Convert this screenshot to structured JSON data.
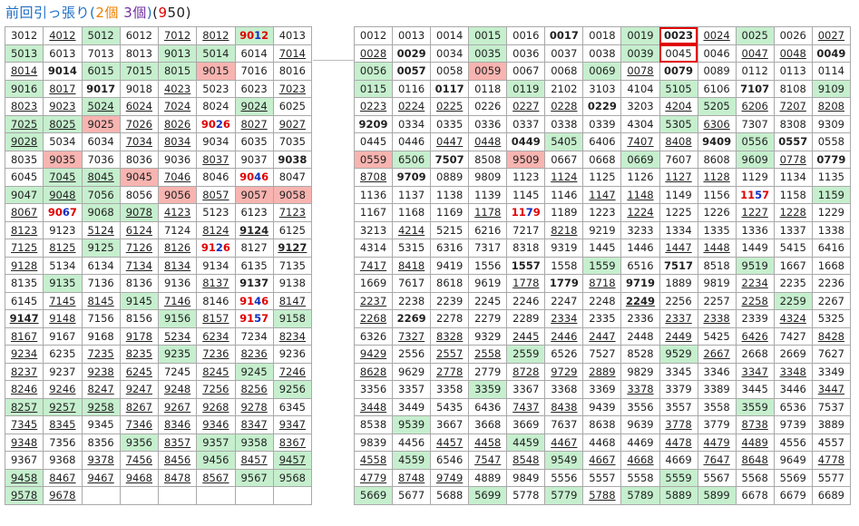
{
  "title": {
    "name": "前回引っ張り",
    "open_paren": "(",
    "count_a": "2個",
    "count_b": "3個",
    "close_paren": ")",
    "number_open": "(",
    "number_digit_1": "9",
    "number_rest": "50",
    "number_close": ")"
  },
  "colors": {
    "green": "#c6efce",
    "pink": "#f8b4b0",
    "red": "#e00000",
    "blue": "#1030c0",
    "title_blue": "#1f6fc5",
    "title_orange": "#f08000",
    "title_purple": "#7030a0"
  },
  "left_table": [
    [
      "3012",
      "4012u",
      "5012g",
      "6012",
      "7012u",
      "8012u",
      "9012g#",
      "4013"
    ],
    [
      "5013g",
      "6013",
      "7013",
      "8013",
      "9013g",
      "5014g",
      "6014",
      "7014u"
    ],
    [
      "8014u",
      "9014*",
      "6015g",
      "7015g",
      "8015g",
      "9015p",
      "7016",
      "8016"
    ],
    [
      "9016g",
      "8017u",
      "9017*",
      "9018",
      "4023u",
      "5023",
      "6023",
      "7023u"
    ],
    [
      "8023u",
      "9023u",
      "5024gu",
      "6024u",
      "7024u",
      "8024",
      "9024gu",
      "6025"
    ],
    [
      "7025gu",
      "8025gu",
      "9025p",
      "7026u",
      "8026u",
      "9026#",
      "8027u",
      "9027u"
    ],
    [
      "9028gu",
      "5034",
      "6034",
      "7034u",
      "8034u",
      "9034",
      "6035",
      "7035"
    ],
    [
      "8035",
      "9035p",
      "7036",
      "8036",
      "9036",
      "8037u",
      "9037",
      "9038*"
    ],
    [
      "6045",
      "7045gu",
      "8045gu",
      "9045p",
      "7046u",
      "8046",
      "9046#",
      "8047"
    ],
    [
      "9047g",
      "9048gu",
      "7056g",
      "8056",
      "9056p",
      "8057u",
      "9057p",
      "9058p"
    ],
    [
      "8067u",
      "9067#",
      "9068g",
      "9078gu",
      "4123u",
      "5123",
      "6123",
      "7123u"
    ],
    [
      "8123u",
      "9123",
      "5124u",
      "6124u",
      "7124",
      "8124u",
      "9124*u",
      "6125"
    ],
    [
      "7125u",
      "8125u",
      "9125g",
      "7126u",
      "8126u",
      "9126#",
      "8127",
      "9127*u"
    ],
    [
      "9128u",
      "5134",
      "6134",
      "7134u",
      "8134u",
      "9134",
      "6135",
      "7135"
    ],
    [
      "8135",
      "9135g",
      "7136",
      "8136",
      "9136",
      "8137u",
      "9137*",
      "9138"
    ],
    [
      "6145",
      "7145u",
      "8145u",
      "9145g",
      "7146u",
      "8146",
      "9146#",
      "8147u"
    ],
    [
      "9147*u",
      "9148u",
      "7156",
      "8156",
      "9156g",
      "8157u",
      "9157#",
      "9158g"
    ],
    [
      "8167u",
      "9167",
      "9168",
      "9178u",
      "5234u",
      "6234u",
      "7234",
      "8234u"
    ],
    [
      "9234u",
      "6235",
      "7235u",
      "8235u",
      "9235g",
      "7236u",
      "8236u",
      "9236"
    ],
    [
      "8237u",
      "9237",
      "9238u",
      "6245u",
      "7245",
      "8245u",
      "9245g",
      "7246u"
    ],
    [
      "8246u",
      "9246u",
      "8247u",
      "9247u",
      "9248u",
      "7256u",
      "8256u",
      "9256g"
    ],
    [
      "8257gu",
      "9257gu",
      "9258gu",
      "8267u",
      "9267u",
      "9268u",
      "9278u",
      "6345"
    ],
    [
      "7345u",
      "8345u",
      "9345",
      "7346u",
      "8346u",
      "9346u",
      "8347u",
      "9347u"
    ],
    [
      "9348u",
      "7356",
      "8356",
      "9356g",
      "8357u",
      "9357g",
      "9358g",
      "8367u"
    ],
    [
      "9367",
      "9368",
      "9378u",
      "7456u",
      "8456u",
      "9456g",
      "8457u",
      "9457gu"
    ],
    [
      "9458gu",
      "8467u",
      "9467u",
      "9468u",
      "8478u",
      "8567u",
      "9567g",
      "9568g"
    ],
    [
      "9578gu",
      "9678u",
      "",
      "",
      "",
      "",
      "",
      ""
    ]
  ],
  "right_table": [
    [
      "0012",
      "0013",
      "0014",
      "0015g",
      "0016",
      "0017*",
      "0018",
      "0019g",
      "0023*x",
      "0024u",
      "0025g",
      "0026",
      "0027u"
    ],
    [
      "0028u",
      "0029*",
      "0034",
      "0035g",
      "0036",
      "0037",
      "0038",
      "0039g",
      "0045x",
      "0046",
      "0047u",
      "0048u",
      "0049*"
    ],
    [
      "0056g",
      "0057*",
      "0058",
      "0059p",
      "0067",
      "0068",
      "0069g",
      "0078u",
      "0079*",
      "0089",
      "0112",
      "0113",
      "0114"
    ],
    [
      "0115g",
      "0116",
      "0117*",
      "0118",
      "0119g",
      "2102",
      "3103",
      "4104",
      "5105g",
      "6106",
      "7107*",
      "8108",
      "9109g"
    ],
    [
      "0223u",
      "0224u",
      "0225u",
      "0226",
      "0227u",
      "0228u",
      "0229*",
      "3203",
      "4204u",
      "5205g",
      "6206u",
      "7207u",
      "8208u"
    ],
    [
      "9209*",
      "0334",
      "0335",
      "0336",
      "0337",
      "0338",
      "0339",
      "4304",
      "5305g",
      "6306u",
      "7307",
      "8308",
      "9309"
    ],
    [
      "0445",
      "0446",
      "0447u",
      "0448u",
      "0449*",
      "5405g",
      "6406",
      "7407u",
      "8408u",
      "9409*",
      "0556g",
      "0557*",
      "0558"
    ],
    [
      "0559p",
      "6506g",
      "7507*",
      "8508",
      "9509p",
      "0667",
      "0668",
      "0669g",
      "7607",
      "8608",
      "9609g",
      "0778u",
      "0779*"
    ],
    [
      "8708u",
      "9709*",
      "0889",
      "9809",
      "1123",
      "1124u",
      "1125",
      "1126",
      "1127u",
      "1128u",
      "1129",
      "1134",
      "1135"
    ],
    [
      "1136",
      "1137",
      "1138",
      "1139",
      "1145",
      "1146",
      "1147u",
      "1148u",
      "1149",
      "1156",
      "1157#",
      "1158",
      "1159g"
    ],
    [
      "1167",
      "1168",
      "1169",
      "1178u",
      "1179#",
      "1189",
      "1223",
      "1224u",
      "1225",
      "1226",
      "1227u",
      "1228u",
      "1229"
    ],
    [
      "3213",
      "4214u",
      "5215",
      "6216",
      "7217",
      "8218u",
      "9219",
      "3233",
      "1334",
      "1335",
      "1336",
      "1337",
      "1338"
    ],
    [
      "4314",
      "5315",
      "6316",
      "7317",
      "8318",
      "9319",
      "1445",
      "1446",
      "1447u",
      "1448u",
      "1449",
      "5415",
      "6416"
    ],
    [
      "7417u",
      "8418u",
      "9419",
      "1556",
      "1557*",
      "1558",
      "1559g",
      "6516",
      "7517*",
      "8518",
      "9519g",
      "1667",
      "1668"
    ],
    [
      "1669",
      "7617",
      "8618",
      "9619",
      "1778u",
      "1779+",
      "8718u",
      "9719*",
      "1889",
      "9819",
      "2234u",
      "2235",
      "2236"
    ],
    [
      "2237u",
      "2238",
      "2239",
      "2245",
      "2246",
      "2247",
      "2248",
      "2249*u",
      "2256",
      "2257",
      "2258u",
      "2259g",
      "2267"
    ],
    [
      "2268u",
      "2269*",
      "2278",
      "2279",
      "2289",
      "2334u",
      "2335",
      "2336",
      "2337u",
      "2338u",
      "2339",
      "4324u",
      "5325"
    ],
    [
      "6326",
      "7327u",
      "8328u",
      "9329",
      "2445u",
      "2446u",
      "2447u",
      "2448",
      "2449u",
      "5425",
      "6426u",
      "7427",
      "8428u"
    ],
    [
      "9429u",
      "2556",
      "2557u",
      "2558u",
      "2559g",
      "6526",
      "7527",
      "8528",
      "9529g",
      "2667u",
      "2668",
      "2669",
      "7627"
    ],
    [
      "8628u",
      "9629",
      "2778u",
      "2779",
      "8728u",
      "9729u",
      "2889u",
      "9829",
      "3345",
      "3346",
      "3347u",
      "3348u",
      "3349"
    ],
    [
      "3356",
      "3357",
      "3358",
      "3359g",
      "3367",
      "3368",
      "3369",
      "3378u",
      "3379",
      "3389",
      "3445",
      "3446",
      "3447u"
    ],
    [
      "3448u",
      "3449",
      "5435",
      "6436",
      "7437u",
      "8438u",
      "9439",
      "3556",
      "3557",
      "3558",
      "3559g",
      "6536",
      "7537"
    ],
    [
      "8538",
      "9539g",
      "3667",
      "3668",
      "3669",
      "7637",
      "8638",
      "9639",
      "3778u",
      "3779",
      "8738u",
      "9739",
      "3889"
    ],
    [
      "9839",
      "4456",
      "4457u",
      "4458u",
      "4459g",
      "4467u",
      "4468",
      "4469",
      "4478u",
      "4479u",
      "4489u",
      "4556",
      "4557"
    ],
    [
      "4558u",
      "4559g",
      "6546",
      "7547u",
      "8548u",
      "9549g",
      "4667u",
      "4668u",
      "4669",
      "7647u",
      "8648u",
      "9649",
      "4778u"
    ],
    [
      "4779u",
      "8748u",
      "9749u",
      "4889",
      "9849",
      "5556",
      "5557",
      "5558",
      "5559g",
      "5567",
      "5568",
      "5569",
      "5577"
    ],
    [
      "5669g",
      "5677",
      "5688",
      "5699g",
      "5778",
      "5779g",
      "5788u",
      "5789g",
      "5889g",
      "5899g",
      "6678",
      "6679",
      "6689"
    ]
  ]
}
